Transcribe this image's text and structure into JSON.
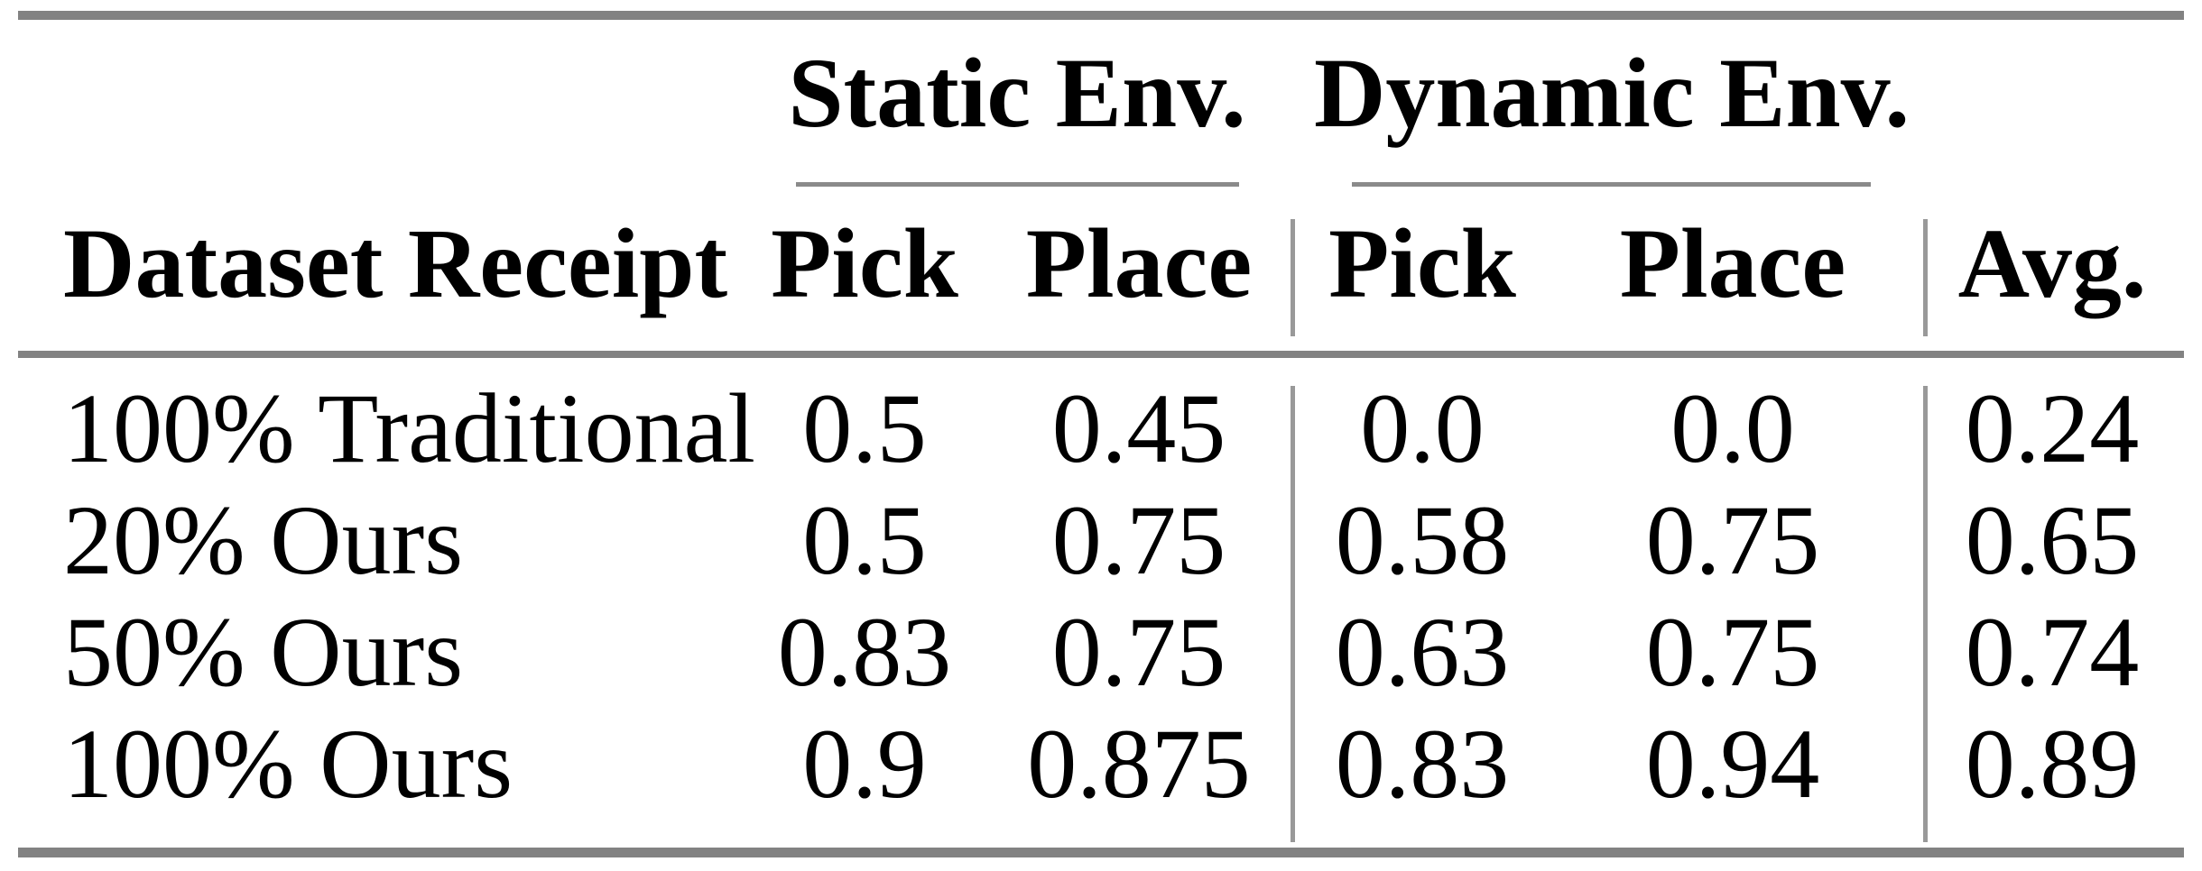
{
  "style": {
    "background": "#ffffff",
    "text_color": "#000000",
    "thick_rule_color": "#828282",
    "cmidrule_color": "#8a8a8a",
    "vertical_bar_color": "#999999"
  },
  "table": {
    "group_headers": [
      {
        "label": "Static Env."
      },
      {
        "label": "Dynamic Env."
      }
    ],
    "columns": {
      "row_label": "Dataset Receipt",
      "static_pick": "Pick",
      "static_place": "Place",
      "dynamic_pick": "Pick",
      "dynamic_place": "Place",
      "avg": "Avg."
    },
    "rows": [
      {
        "label": "100% Traditional",
        "static_pick": "0.5",
        "static_place": "0.45",
        "dynamic_pick": "0.0",
        "dynamic_place": "0.0",
        "avg": "0.24"
      },
      {
        "label": "20% Ours",
        "static_pick": "0.5",
        "static_place": "0.75",
        "dynamic_pick": "0.58",
        "dynamic_place": "0.75",
        "avg": "0.65"
      },
      {
        "label": "50% Ours",
        "static_pick": "0.83",
        "static_place": "0.75",
        "dynamic_pick": "0.63",
        "dynamic_place": "0.75",
        "avg": "0.74"
      },
      {
        "label": "100% Ours",
        "static_pick": "0.9",
        "static_place": "0.875",
        "dynamic_pick": "0.83",
        "dynamic_place": "0.94",
        "avg": "0.89"
      }
    ]
  },
  "chart_data": {
    "type": "table",
    "title": "",
    "column_groups": [
      "Static Env.",
      "Dynamic Env."
    ],
    "columns": [
      "Dataset Receipt",
      "Static Env. Pick",
      "Static Env. Place",
      "Dynamic Env. Pick",
      "Dynamic Env. Place",
      "Avg."
    ],
    "rows": [
      [
        "100% Traditional",
        0.5,
        0.45,
        0.0,
        0.0,
        0.24
      ],
      [
        "20% Ours",
        0.5,
        0.75,
        0.58,
        0.75,
        0.65
      ],
      [
        "50% Ours",
        0.83,
        0.75,
        0.63,
        0.75,
        0.74
      ],
      [
        "100% Ours",
        0.9,
        0.875,
        0.83,
        0.94,
        0.89
      ]
    ]
  }
}
